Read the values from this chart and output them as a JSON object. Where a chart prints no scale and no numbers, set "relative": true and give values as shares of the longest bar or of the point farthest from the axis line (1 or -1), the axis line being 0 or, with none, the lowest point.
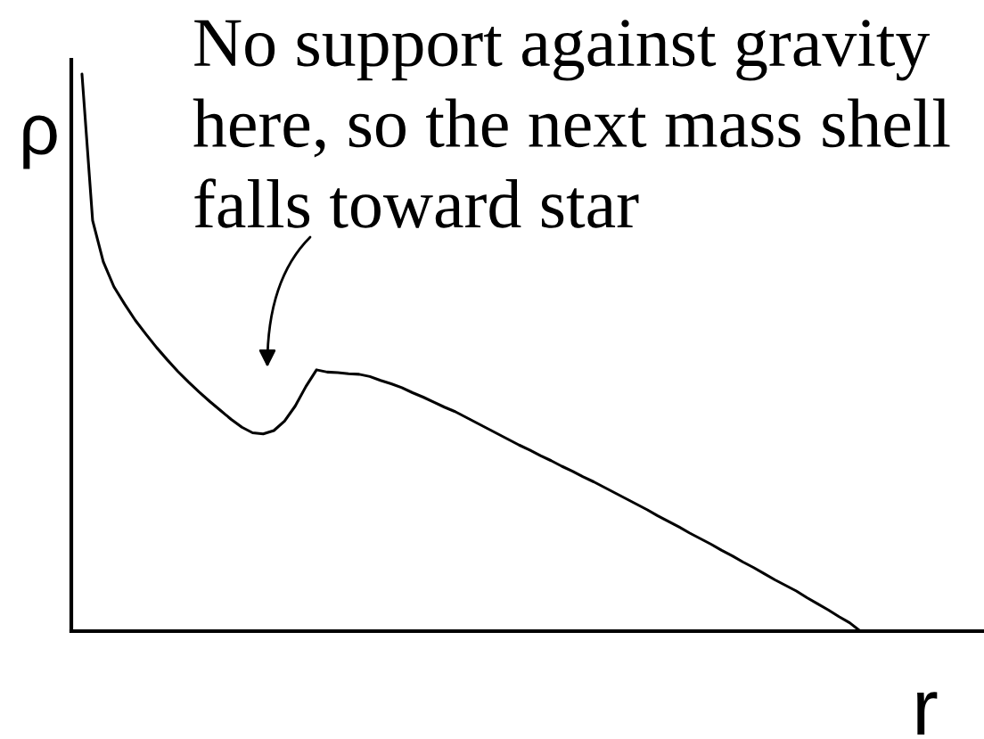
{
  "chart_data": {
    "type": "line",
    "relative": true,
    "xlabel": "r",
    "ylabel": "ρ",
    "line_style": "solid",
    "annotations": [
      "No support against gravity\nhere, so the next mass shell\nfalls toward star"
    ],
    "categories": [
      null,
      null,
      null,
      null,
      null,
      null,
      null,
      null,
      null,
      null,
      null,
      null,
      null,
      null,
      null,
      null,
      null,
      null,
      null,
      null,
      null,
      null,
      null,
      null,
      null,
      null,
      null,
      null,
      null,
      null,
      null,
      null,
      null,
      null,
      null,
      null,
      null,
      null,
      null,
      null,
      null,
      null,
      null,
      null,
      null,
      null,
      null,
      null,
      null,
      null,
      null,
      null,
      null,
      null,
      null,
      null,
      null,
      null,
      null,
      null,
      null,
      null,
      null,
      null,
      null,
      null,
      null,
      null,
      null,
      null,
      null,
      null,
      null,
      null
    ],
    "series": [
      {
        "color": "#000000",
        "values": [
          1,
          0.737,
          0.663,
          0.618,
          0.587,
          0.558,
          0.533,
          0.509,
          0.487,
          0.466,
          0.447,
          0.429,
          0.412,
          0.396,
          0.38,
          0.366,
          0.356,
          0.354,
          0.36,
          0.377,
          0.404,
          0.439,
          0.469,
          0.465,
          0.464,
          0.462,
          0.461,
          0.457,
          0.45,
          0.444,
          0.437,
          0.428,
          0.42,
          0.411,
          0.402,
          0.394,
          0.384,
          0.374,
          0.364,
          0.354,
          0.344,
          0.334,
          0.325,
          0.315,
          0.306,
          0.296,
          0.287,
          0.277,
          0.268,
          0.258,
          0.248,
          0.238,
          0.228,
          0.218,
          0.207,
          0.197,
          0.187,
          0.176,
          0.166,
          0.156,
          0.145,
          0.135,
          0.124,
          0.114,
          0.103,
          0.092,
          0.082,
          0.072,
          0.06,
          0.049,
          0.038,
          0.026,
          0.015,
          0
        ]
      }
    ]
  }
}
